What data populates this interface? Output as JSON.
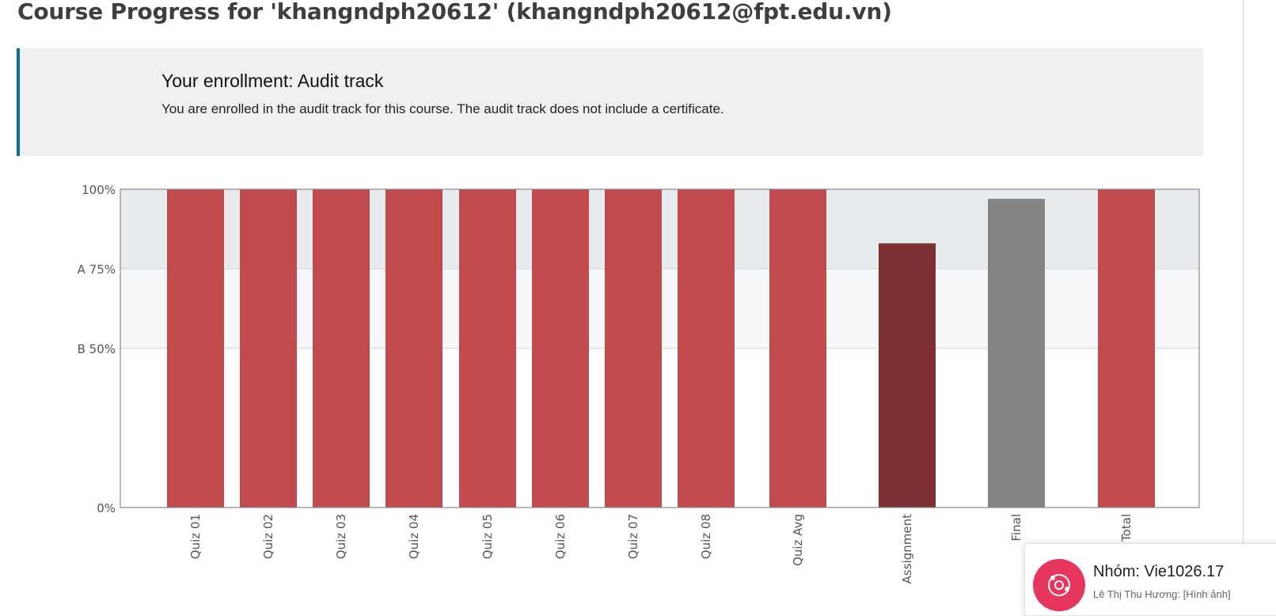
{
  "page": {
    "title": "Course Progress for 'khangndph20612' (khangndph20612@fpt.edu.vn)"
  },
  "enrollment": {
    "title": "Your enrollment: Audit track",
    "message": "You are enrolled in the audit track for this course. The audit track does not include a certificate."
  },
  "notification": {
    "title": "Nhóm: Vie1026.17",
    "subtitle": "Lê Thị Thu Hương: [Hình ảnh]",
    "icon": "group-chat-icon"
  },
  "chart_data": {
    "type": "bar",
    "categories": [
      "Quiz 01",
      "Quiz 02",
      "Quiz 03",
      "Quiz 04",
      "Quiz 05",
      "Quiz 06",
      "Quiz 07",
      "Quiz 08",
      "Quiz Avg",
      "Assignment",
      "Final",
      "Total"
    ],
    "values": [
      100,
      100,
      100,
      100,
      100,
      100,
      100,
      100,
      100,
      83,
      97,
      100
    ],
    "colors": [
      "#c14a4d",
      "#c14a4d",
      "#c14a4d",
      "#c14a4d",
      "#c14a4d",
      "#c14a4d",
      "#c14a4d",
      "#c14a4d",
      "#c14a4d",
      "#7d3033",
      "#858585",
      "#c14a4d"
    ],
    "ylim": [
      0,
      100
    ],
    "y_ticks": [
      {
        "value": 100,
        "label": "100%"
      },
      {
        "value": 75,
        "label": "A 75%"
      },
      {
        "value": 50,
        "label": "B 50%"
      },
      {
        "value": 0,
        "label": "0%"
      }
    ],
    "grade_bands": [
      {
        "from": 75,
        "to": 100,
        "color": "#e9ecef"
      },
      {
        "from": 50,
        "to": 75,
        "color": "#f6f7f9"
      }
    ],
    "grid": true,
    "xlabel": "",
    "ylabel": ""
  }
}
